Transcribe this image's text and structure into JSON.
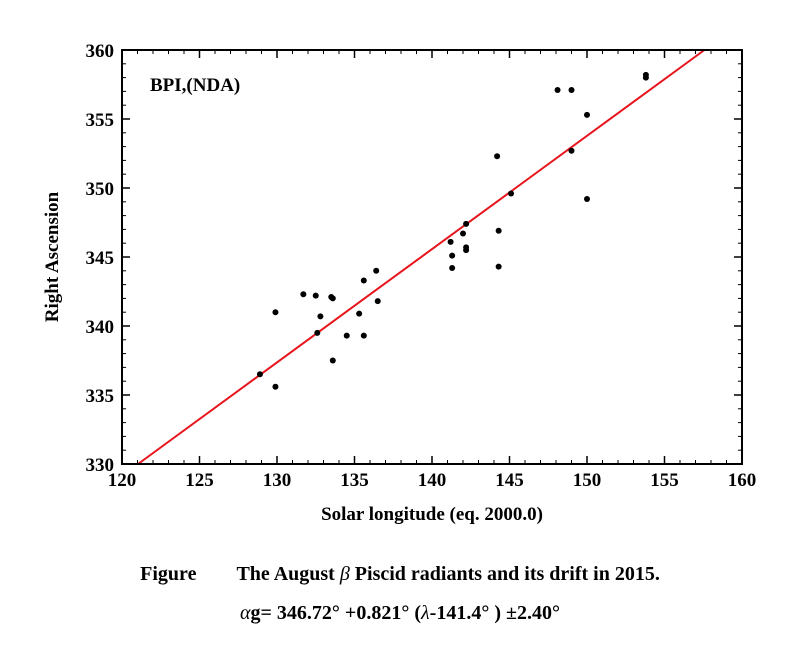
{
  "chart_data": {
    "type": "scatter",
    "panel_label": "BPI,(NDA)",
    "xlabel": "Solar longitude (eq. 2000.0)",
    "ylabel": "Right Ascension",
    "xlim": [
      120,
      160
    ],
    "ylim": [
      330,
      360
    ],
    "xticks": [
      "120",
      "125",
      "130",
      "135",
      "140",
      "145",
      "150",
      "155",
      "160"
    ],
    "yticks": [
      "330",
      "335",
      "340",
      "345",
      "350",
      "355",
      "360"
    ],
    "points": [
      [
        128.9,
        336.5
      ],
      [
        129.9,
        341.0
      ],
      [
        129.9,
        335.6
      ],
      [
        131.7,
        342.3
      ],
      [
        132.5,
        342.2
      ],
      [
        132.6,
        339.5
      ],
      [
        132.8,
        340.7
      ],
      [
        133.5,
        342.1
      ],
      [
        133.6,
        342.0
      ],
      [
        133.6,
        337.5
      ],
      [
        134.5,
        339.3
      ],
      [
        135.3,
        340.9
      ],
      [
        135.6,
        343.3
      ],
      [
        135.6,
        339.3
      ],
      [
        136.4,
        344.0
      ],
      [
        136.5,
        341.8
      ],
      [
        141.2,
        346.1
      ],
      [
        141.3,
        345.1
      ],
      [
        141.3,
        344.2
      ],
      [
        142.0,
        346.7
      ],
      [
        142.2,
        347.4
      ],
      [
        142.2,
        345.7
      ],
      [
        142.2,
        345.5
      ],
      [
        144.2,
        352.3
      ],
      [
        144.3,
        346.9
      ],
      [
        144.3,
        344.3
      ],
      [
        145.1,
        349.6
      ],
      [
        148.1,
        357.1
      ],
      [
        149.0,
        357.1
      ],
      [
        149.0,
        352.7
      ],
      [
        150.0,
        355.3
      ],
      [
        150.0,
        349.2
      ],
      [
        153.8,
        358.2
      ],
      [
        153.8,
        358.0
      ]
    ],
    "fit": {
      "type": "line",
      "color": "#e8141c",
      "slope": 0.821,
      "x0": 141.4,
      "y0": 346.72
    },
    "point_color": "#000000"
  },
  "caption": {
    "figure_label": "Figure",
    "title_pre": "The August ",
    "beta": "β",
    "title_post": " Piscid radiants and its drift in 2015.",
    "alpha": "α",
    "formula_rest": "g= 346.72° +0.821° (",
    "lambda": "λ",
    "formula_end": "-141.4° ) ±2.40°"
  }
}
